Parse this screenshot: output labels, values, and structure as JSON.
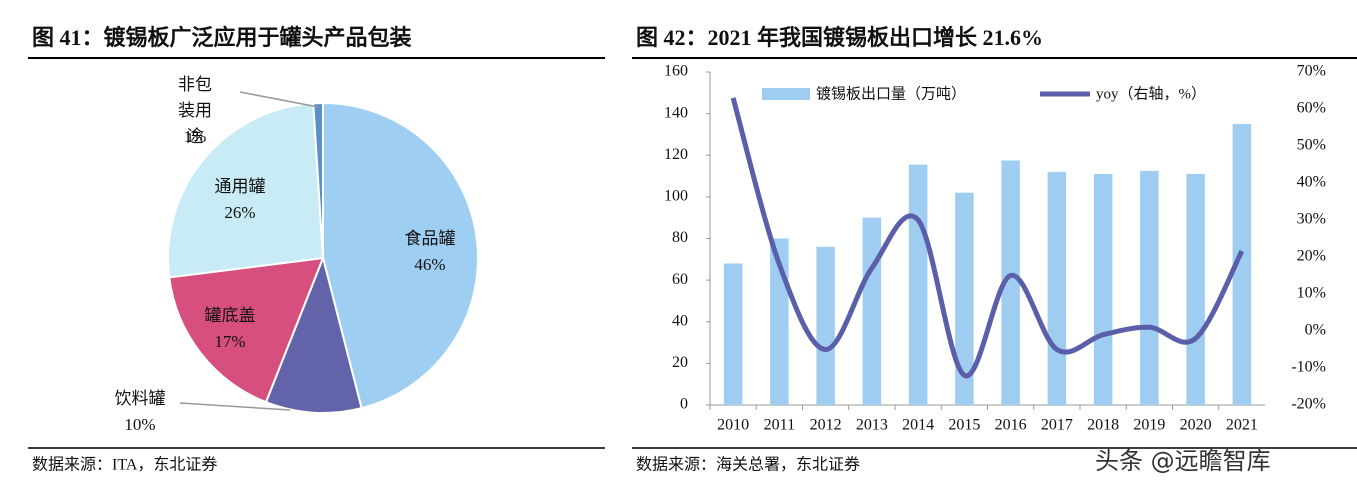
{
  "chart_data": [
    {
      "type": "pie",
      "title": "图 41：镀锡板广泛应用于罐头产品包装",
      "categories": [
        "食品罐",
        "饮料罐",
        "罐底盖",
        "通用罐",
        "非包装用途"
      ],
      "values": [
        46,
        10,
        17,
        26,
        1
      ],
      "value_labels": [
        "46%",
        "10%",
        "17%",
        "26%",
        "1%"
      ],
      "colors": [
        "#9ecff3",
        "#6263a9",
        "#d64f7e",
        "#c9ebf5",
        "#5b8fc7"
      ],
      "source": "数据来源：ITA，东北证券"
    },
    {
      "type": "bar-line",
      "title": "图 42：2021 年我国镀锡板出口增长 21.6%",
      "categories": [
        "2010",
        "2011",
        "2012",
        "2013",
        "2014",
        "2015",
        "2016",
        "2017",
        "2018",
        "2019",
        "2020",
        "2021"
      ],
      "series": [
        {
          "name": "镀锡板出口量（万吨）",
          "color": "#9fcdf2",
          "values": [
            68,
            80,
            76,
            90,
            115.5,
            102,
            117.5,
            112,
            111,
            112.5,
            111,
            135
          ]
        },
        {
          "name": "yoy（右轴，%）",
          "color": "#5b5ea8",
          "axis": "y2",
          "values": [
            63,
            18,
            -5,
            17,
            30,
            -12,
            15,
            -5,
            -1,
            1,
            -2,
            21.6
          ]
        }
      ],
      "ylim": [
        0,
        160
      ],
      "yticks": [
        0,
        20,
        40,
        60,
        80,
        100,
        120,
        140,
        160
      ],
      "y2lim": [
        -20,
        70
      ],
      "y2ticks": [
        {
          "value": -20,
          "label": "-20%"
        },
        {
          "value": -10,
          "label": "-10%"
        },
        {
          "value": 0,
          "label": "0%"
        },
        {
          "value": 10,
          "label": "10%"
        },
        {
          "value": 20,
          "label": "20%"
        },
        {
          "value": 30,
          "label": "30%"
        },
        {
          "value": 40,
          "label": "40%"
        },
        {
          "value": 50,
          "label": "50%"
        },
        {
          "value": 60,
          "label": "60%"
        },
        {
          "value": 70,
          "label": "70%"
        }
      ],
      "source": "数据来源：海关总署，东北证券"
    }
  ],
  "watermark": "头条 @远瞻智库"
}
